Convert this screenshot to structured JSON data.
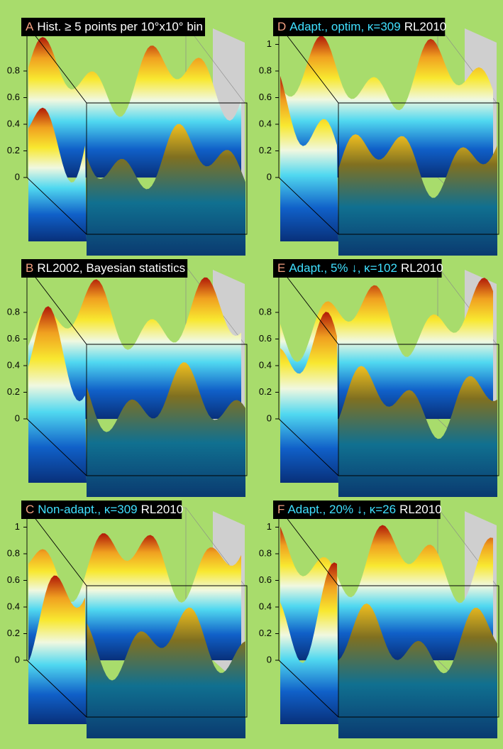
{
  "panels": [
    {
      "parts": [
        {
          "text": "A",
          "color": "#f4a080"
        },
        {
          "text": "Hist. ≥ 5 points per 10°x10° bin",
          "color": "#ffffff"
        }
      ],
      "yticks": [
        0,
        0.2,
        0.4,
        0.6,
        0.8
      ]
    },
    {
      "parts": [
        {
          "text": "D",
          "color": "#f4a080"
        },
        {
          "text": "Adapt., optim, κ=309",
          "color": "#40e0ff"
        },
        {
          "text": "RL2010",
          "color": "#ffffff"
        }
      ],
      "yticks": [
        0,
        0.2,
        0.4,
        0.6,
        0.8,
        1
      ]
    },
    {
      "parts": [
        {
          "text": "B",
          "color": "#f4a080"
        },
        {
          "text": "RL2002, Bayesian statistics",
          "color": "#ffffff"
        }
      ],
      "yticks": [
        0,
        0.2,
        0.4,
        0.6,
        0.8
      ]
    },
    {
      "parts": [
        {
          "text": "E",
          "color": "#f4a080"
        },
        {
          "text": "Adapt., 5% ↓, κ=102",
          "color": "#40e0ff"
        },
        {
          "text": "RL2010",
          "color": "#ffffff"
        }
      ],
      "yticks": [
        0,
        0.2,
        0.4,
        0.6,
        0.8
      ]
    },
    {
      "parts": [
        {
          "text": "C",
          "color": "#f4a080"
        },
        {
          "text": "Non-adapt., κ=309",
          "color": "#40e0ff"
        },
        {
          "text": "RL2010",
          "color": "#ffffff"
        }
      ],
      "yticks": [
        0,
        0.2,
        0.4,
        0.6,
        0.8,
        1
      ]
    },
    {
      "parts": [
        {
          "text": "F",
          "color": "#f4a080"
        },
        {
          "text": "Adapt., 20% ↓, κ=26",
          "color": "#40e0ff"
        },
        {
          "text": "RL2010",
          "color": "#ffffff"
        }
      ],
      "yticks": [
        0,
        0.2,
        0.4,
        0.6,
        0.8,
        1
      ]
    }
  ]
}
